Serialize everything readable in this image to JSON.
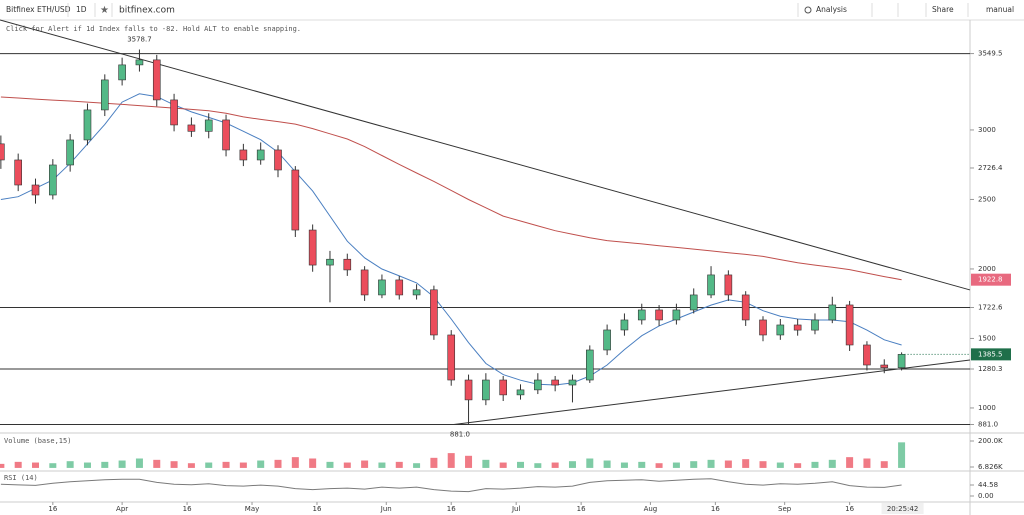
{
  "ui": {
    "symbol": "Bitfinex ETH/USD",
    "interval": "1D",
    "site": "bitfinex.com",
    "analysis": "Analysis",
    "share": "Share",
    "mode": "manual",
    "hint": "Click for Alert if 1d Index falls to -82. Hold ALT to enable snapping.",
    "clock": "20:25:42"
  },
  "chart_data": {
    "type": "candlestick",
    "up_color": "#53b987",
    "down_color": "#eb4d5c",
    "x": [
      4,
      8,
      12,
      16,
      20,
      24,
      28,
      32,
      36,
      40,
      44,
      48,
      52,
      56,
      60,
      64,
      68,
      72,
      76,
      80,
      84,
      88,
      92,
      96,
      100,
      104,
      108,
      112,
      116,
      120,
      124,
      128,
      132,
      136,
      140,
      144,
      148,
      152,
      156,
      160,
      164,
      168,
      172,
      176,
      180,
      184,
      188,
      192,
      196,
      200,
      204,
      208,
      212
    ],
    "open": [
      2900,
      2784,
      2604,
      2532,
      2748,
      2928,
      3144,
      3360,
      3468,
      3504,
      3216,
      3036,
      2990,
      3072,
      2856,
      2784,
      2856,
      2712,
      2280,
      2028,
      2070,
      1993,
      1813,
      1921,
      1813,
      1850,
      1525,
      1201,
      1058,
      1201,
      1094,
      1130,
      1201,
      1165,
      1201,
      1417,
      1561,
      1633,
      1705,
      1633,
      1705,
      1813,
      1957,
      1813,
      1633,
      1525,
      1597,
      1560,
      1633,
      1741,
      1453,
      1309,
      1290
    ],
    "high": [
      2960,
      2830,
      2650,
      2790,
      2970,
      3190,
      3400,
      3520,
      3578.7,
      3540,
      3260,
      3090,
      3120,
      3110,
      2900,
      2910,
      2890,
      2740,
      2320,
      2130,
      2110,
      2020,
      1960,
      1950,
      1890,
      1880,
      1560,
      1240,
      1250,
      1230,
      1170,
      1250,
      1230,
      1240,
      1450,
      1600,
      1680,
      1750,
      1740,
      1750,
      1860,
      2020,
      1990,
      1840,
      1660,
      1640,
      1640,
      1680,
      1800,
      1770,
      1480,
      1350,
      1400
    ],
    "low": [
      2720,
      2560,
      2470,
      2500,
      2700,
      2890,
      3100,
      3320,
      3420,
      3170,
      2990,
      2950,
      2940,
      2810,
      2740,
      2750,
      2660,
      2230,
      1980,
      1760,
      1950,
      1770,
      1790,
      1780,
      1780,
      1490,
      1160,
      881,
      1020,
      1050,
      1060,
      1100,
      1120,
      1040,
      1180,
      1380,
      1520,
      1600,
      1590,
      1600,
      1680,
      1790,
      1770,
      1590,
      1480,
      1490,
      1520,
      1530,
      1610,
      1410,
      1270,
      1250,
      1270
    ],
    "close": [
      2784,
      2604,
      2532,
      2748,
      2928,
      3144,
      3360,
      3468,
      3504,
      3216,
      3036,
      2990,
      3072,
      2856,
      2784,
      2856,
      2712,
      2280,
      2028,
      2070,
      1993,
      1813,
      1921,
      1813,
      1850,
      1525,
      1201,
      1058,
      1201,
      1094,
      1130,
      1201,
      1165,
      1201,
      1417,
      1561,
      1633,
      1705,
      1633,
      1705,
      1813,
      1957,
      1813,
      1633,
      1525,
      1597,
      1560,
      1633,
      1741,
      1453,
      1309,
      1290,
      1385.5
    ],
    "overlays": [
      {
        "color": "#4a7fc1",
        "values": [
          2500,
          2520,
          2580,
          2640,
          2760,
          2900,
          3040,
          3200,
          3260,
          3240,
          3180,
          3130,
          3090,
          3050,
          2990,
          2930,
          2840,
          2700,
          2560,
          2380,
          2200,
          2080,
          2000,
          1950,
          1900,
          1800,
          1640,
          1470,
          1320,
          1240,
          1200,
          1170,
          1165,
          1180,
          1230,
          1309,
          1420,
          1520,
          1590,
          1640,
          1690,
          1740,
          1777,
          1760,
          1700,
          1660,
          1640,
          1633,
          1633,
          1620,
          1560,
          1490,
          1453
        ]
      },
      {
        "color": "#c0504d",
        "values": [
          3237,
          3230,
          3222,
          3215,
          3208,
          3200,
          3192,
          3184,
          3175,
          3166,
          3157,
          3148,
          3138,
          3120,
          3094,
          3076,
          3060,
          3042,
          3010,
          2972,
          2935,
          2880,
          2816,
          2752,
          2690,
          2630,
          2565,
          2500,
          2440,
          2380,
          2345,
          2310,
          2275,
          2250,
          2225,
          2204,
          2192,
          2180,
          2167,
          2155,
          2143,
          2130,
          2117,
          2105,
          2090,
          2067,
          2045,
          2028,
          2012,
          1995,
          1970,
          1945,
          1922.8
        ]
      }
    ],
    "trendlines": [
      {
        "x": [
          3.8,
          227.8
        ],
        "y": [
          3791,
          1849
        ]
      },
      {
        "x": [
          108.6,
          227.8
        ],
        "y": [
          881,
          1345
        ]
      }
    ],
    "hlines": [
      3549.5,
      1722.6,
      1280.3,
      881
    ],
    "price_labels": [
      {
        "value": 1922.8,
        "color": "#e8697f"
      },
      {
        "value": 1385.5,
        "color": "#1f6f4a"
      }
    ],
    "annotations": [
      {
        "x": 36,
        "value": 3578.7
      },
      {
        "x": 110,
        "value": 881,
        "label": "881.0"
      }
    ],
    "xlim": [
      3.8,
      227.8
    ],
    "xticks": [
      16,
      {
        "value": 32,
        "label": "Apr"
      },
      {
        "value": 47,
        "label": "16"
      },
      {
        "value": 62,
        "label": "May"
      },
      {
        "value": 77,
        "label": "16"
      },
      {
        "value": 93,
        "label": "Jun"
      },
      {
        "value": 108,
        "label": "16"
      },
      {
        "value": 123,
        "label": "Jul"
      },
      {
        "value": 138,
        "label": "16"
      },
      {
        "value": 154,
        "label": "Aug"
      },
      {
        "value": 169,
        "label": "16"
      },
      {
        "value": 185,
        "label": "Sep"
      },
      {
        "value": 200,
        "label": "16"
      }
    ],
    "ylim": [
      827,
      3791
    ],
    "yticks": [
      {
        "value": 881,
        "label": "881.0"
      },
      1000,
      1280.3,
      1500,
      1722.6,
      2000,
      2500,
      2726.4,
      3000,
      3549.5
    ],
    "volume": {
      "title": "Volume (base,15)",
      "ylim": [
        -15464,
        237150
      ],
      "yticks": [
        {
          "value": 6826,
          "label": "6.826K"
        },
        {
          "value": 200000,
          "label": "200.0K"
        }
      ],
      "values": [
        30000,
        45000,
        40000,
        35000,
        50000,
        40000,
        45000,
        55000,
        70000,
        60000,
        50000,
        35000,
        40000,
        45000,
        40000,
        55000,
        60000,
        80000,
        70000,
        45000,
        40000,
        55000,
        40000,
        45000,
        35000,
        75000,
        110000,
        90000,
        60000,
        40000,
        45000,
        35000,
        40000,
        50000,
        70000,
        55000,
        40000,
        45000,
        35000,
        40000,
        50000,
        60000,
        55000,
        65000,
        50000,
        40000,
        35000,
        45000,
        60000,
        80000,
        70000,
        50000,
        190000
      ]
    },
    "rsi": {
      "title": "RSI (14)",
      "color": "#7a7a7a",
      "ylim": [
        -16.2,
        89.2
      ],
      "yticks": [
        {
          "value": 0,
          "label": "0.00"
        },
        44.58
      ],
      "values": [
        48,
        45,
        43,
        52,
        58,
        62,
        66,
        68,
        68,
        55,
        48,
        46,
        50,
        42,
        40,
        44,
        40,
        30,
        26,
        30,
        32,
        28,
        36,
        32,
        36,
        26,
        20,
        18,
        30,
        28,
        32,
        38,
        36,
        40,
        55,
        62,
        64,
        66,
        60,
        64,
        68,
        70,
        58,
        48,
        44,
        50,
        48,
        52,
        58,
        42,
        36,
        35,
        44.58
      ]
    }
  }
}
